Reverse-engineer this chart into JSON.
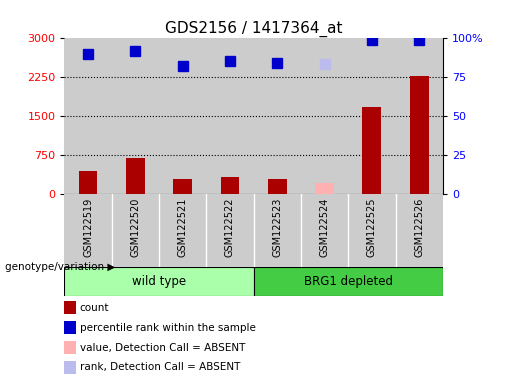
{
  "title": "GDS2156 / 1417364_at",
  "samples": [
    "GSM122519",
    "GSM122520",
    "GSM122521",
    "GSM122522",
    "GSM122523",
    "GSM122524",
    "GSM122525",
    "GSM122526"
  ],
  "count_values": [
    450,
    700,
    280,
    320,
    290,
    220,
    1680,
    2280
  ],
  "rank_values": [
    2700,
    2760,
    2460,
    2560,
    2530,
    2500,
    2960,
    2960
  ],
  "absent_flags": [
    false,
    false,
    false,
    false,
    false,
    true,
    false,
    false
  ],
  "bar_color_present": "#AA0000",
  "bar_color_absent": "#FFB0B0",
  "rank_color_present": "#0000CC",
  "rank_color_absent": "#BBBBEE",
  "ylim_left": [
    0,
    3000
  ],
  "ylim_right": [
    0,
    100
  ],
  "yticks_left": [
    0,
    750,
    1500,
    2250,
    3000
  ],
  "yticks_right": [
    0,
    25,
    50,
    75,
    100
  ],
  "ytick_labels_right": [
    "0",
    "25",
    "50",
    "75",
    "100%"
  ],
  "group1_samples": [
    0,
    1,
    2,
    3
  ],
  "group1_label": "wild type",
  "group1_color": "#AAFFAA",
  "group2_samples": [
    4,
    5,
    6,
    7
  ],
  "group2_label": "BRG1 depleted",
  "group2_color": "#44CC44",
  "group_label": "genotype/variation",
  "legend_items": [
    {
      "label": "count",
      "color": "#AA0000"
    },
    {
      "label": "percentile rank within the sample",
      "color": "#0000CC"
    },
    {
      "label": "value, Detection Call = ABSENT",
      "color": "#FFB0B0"
    },
    {
      "label": "rank, Detection Call = ABSENT",
      "color": "#BBBBEE"
    }
  ],
  "bar_width": 0.4,
  "rank_marker_size": 7,
  "grid_linestyle": ":",
  "grid_color": "black",
  "title_fontsize": 11,
  "tick_fontsize": 8,
  "col_bg_color": "#CCCCCC",
  "white_bg": "#FFFFFF"
}
